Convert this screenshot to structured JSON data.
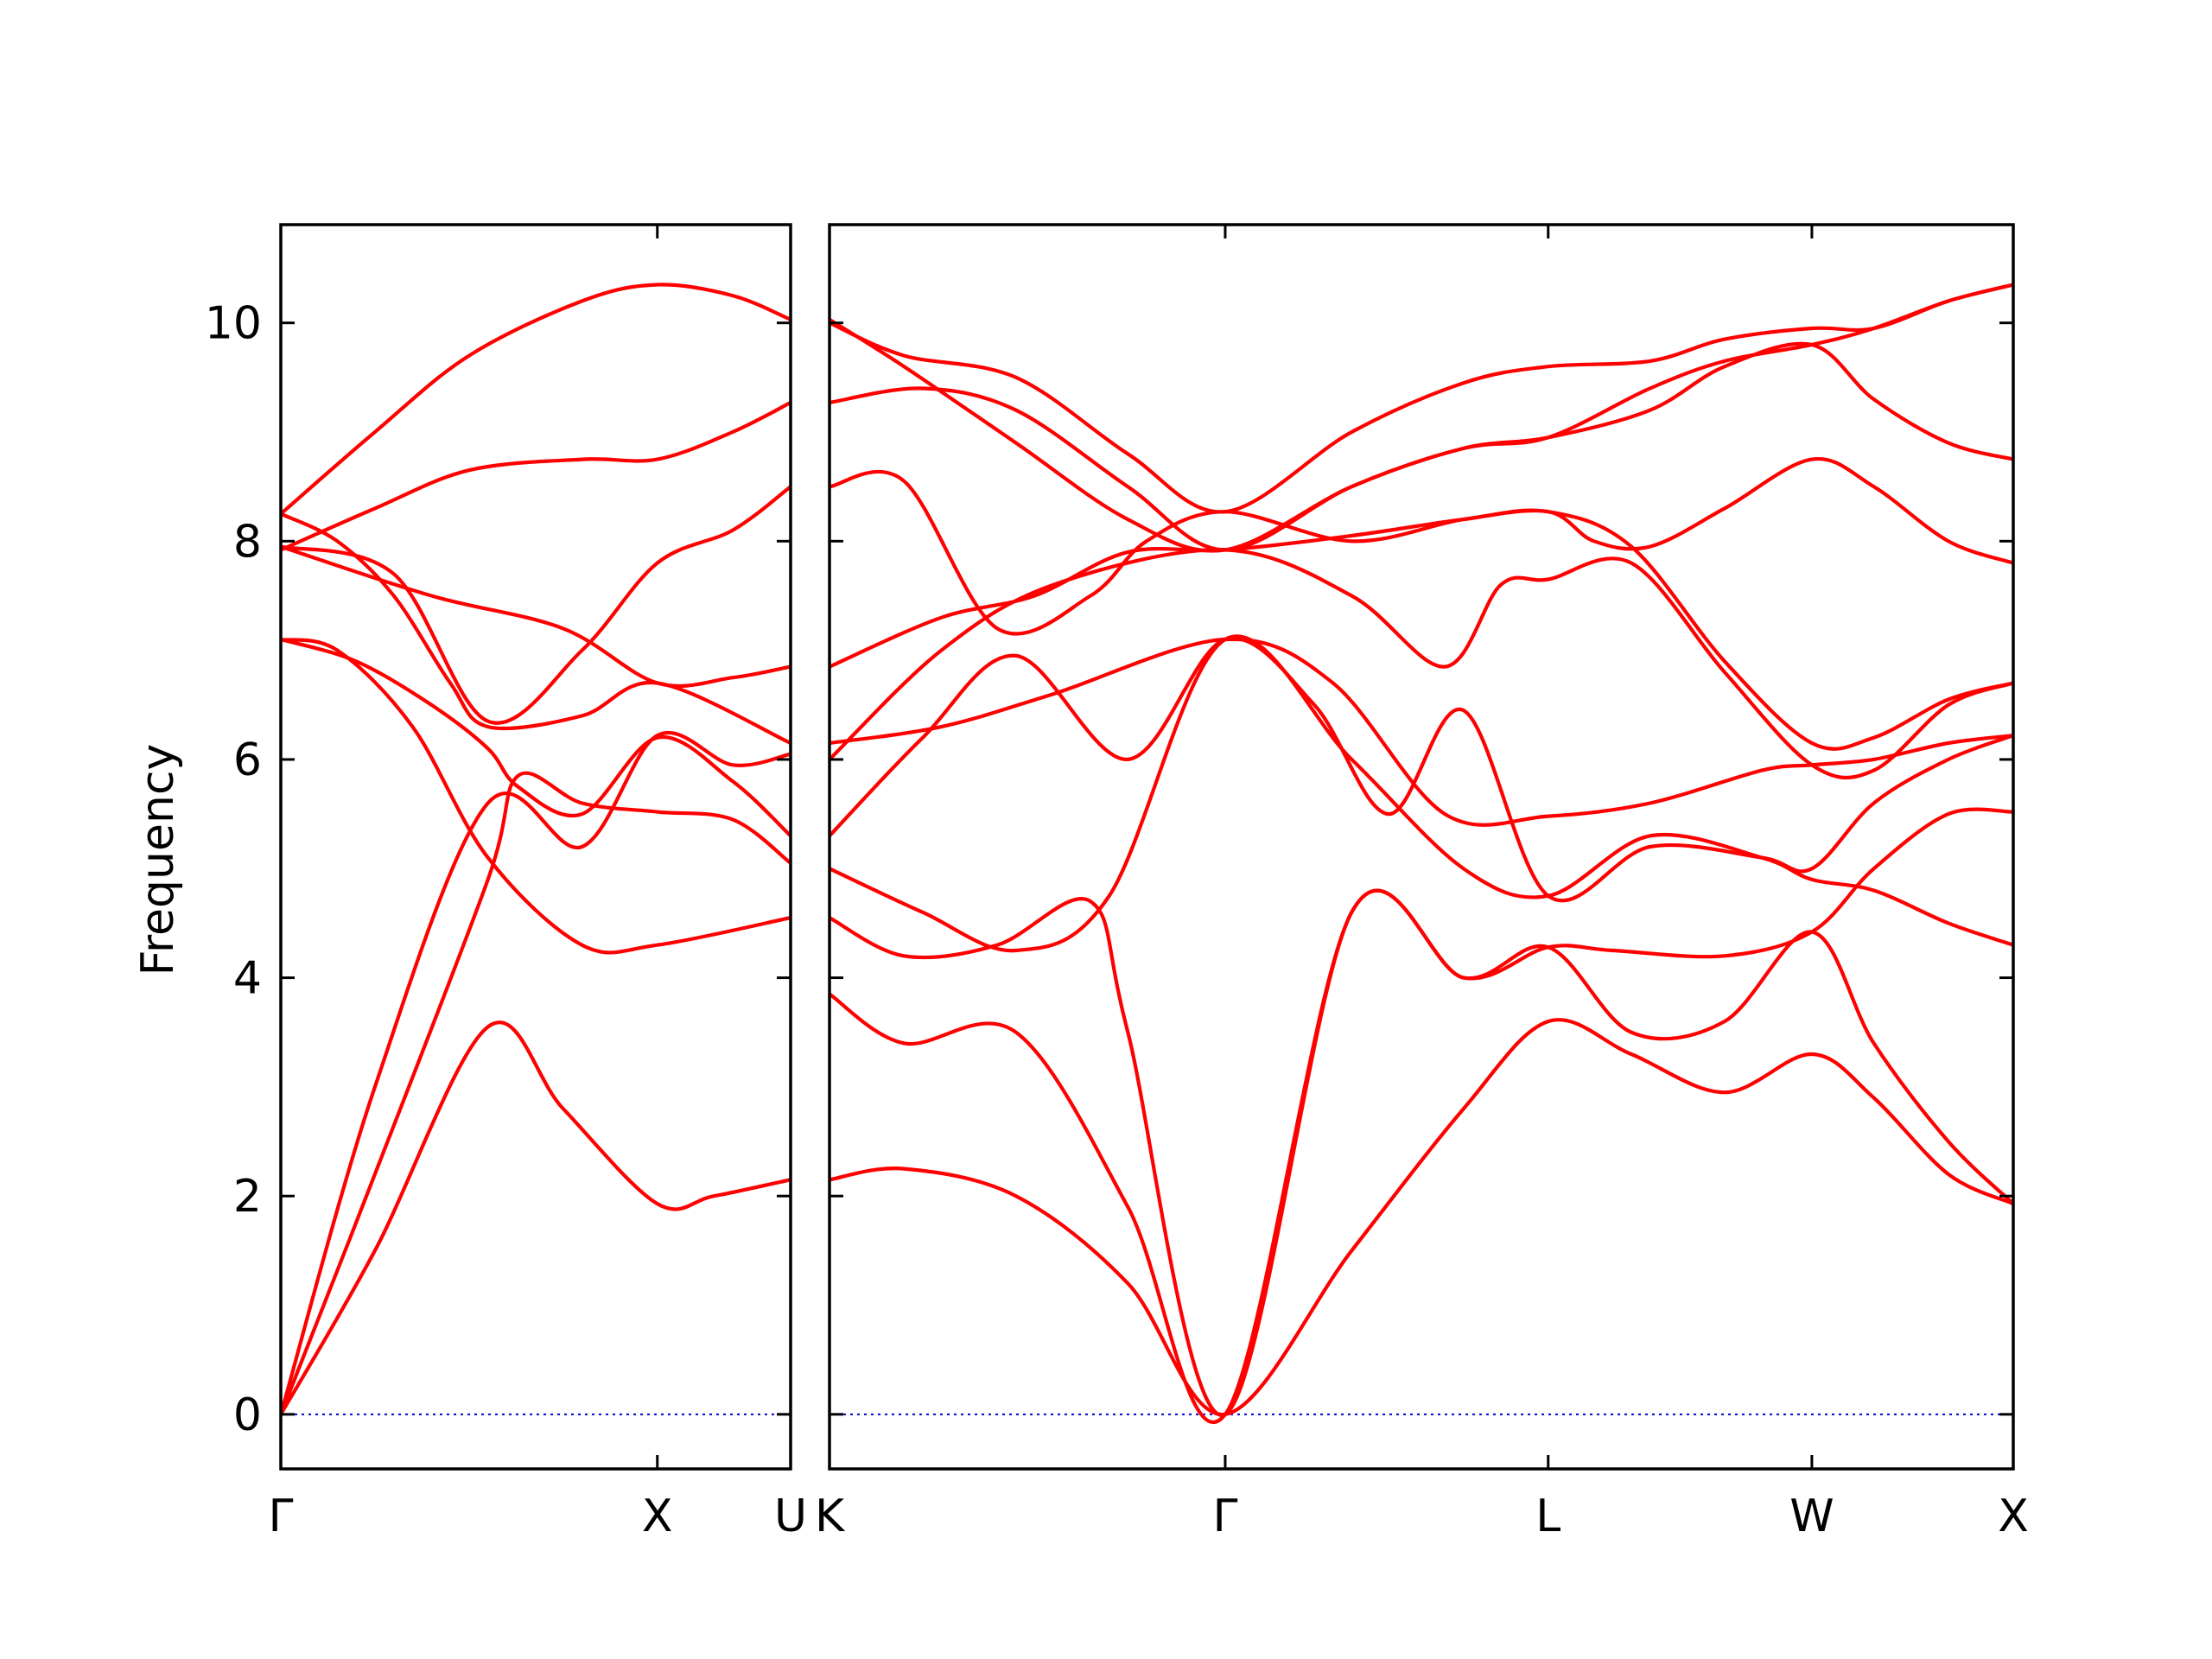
{
  "colors": {
    "band": "#ff0000",
    "zero_line": "#0000cc",
    "axis": "#000000"
  },
  "chart_data": {
    "type": "line",
    "title": "",
    "ylabel": "Frequency",
    "xlabel": "",
    "ylim": [
      -0.5,
      10.9
    ],
    "yticks": [
      0,
      2,
      4,
      6,
      8,
      10
    ],
    "grid": false,
    "legend": "none",
    "reference_line": {
      "y": 0,
      "style": "dotted"
    },
    "panels": [
      {
        "id": "left",
        "xlim": [
          0,
          1.354
        ],
        "ticks": [
          {
            "x": 0,
            "label": "Γ"
          },
          {
            "x": 1.0,
            "label": "X"
          },
          {
            "x": 1.354,
            "label": "U"
          }
        ],
        "series": [
          {
            "x": [
              0,
              0.25,
              0.55,
              0.75,
              1.0,
              1.15,
              1.354
            ],
            "y": [
              0,
              1.5,
              3.55,
              2.8,
              1.93,
              2.0,
              2.15
            ]
          },
          {
            "x": [
              0,
              0.25,
              0.55,
              0.63,
              0.8,
              1.0,
              1.2,
              1.354
            ],
            "y": [
              0,
              2.2,
              4.9,
              5.85,
              5.6,
              5.52,
              5.45,
              5.05
            ]
          },
          {
            "x": [
              0,
              0.25,
              0.55,
              0.8,
              1.0,
              1.2,
              1.354
            ],
            "y": [
              0,
              3.0,
              5.6,
              5.2,
              6.22,
              5.95,
              6.05
            ]
          },
          {
            "x": [
              0,
              0.15,
              0.35,
              0.55,
              0.8,
              1.0,
              1.354
            ],
            "y": [
              7.1,
              7.0,
              6.3,
              5.1,
              4.3,
              4.3,
              4.55
            ]
          },
          {
            "x": [
              0,
              0.2,
              0.4,
              0.55,
              0.63,
              0.8,
              1.0,
              1.2,
              1.354
            ],
            "y": [
              7.1,
              6.9,
              6.5,
              6.1,
              5.75,
              5.5,
              6.2,
              5.8,
              5.3
            ]
          },
          {
            "x": [
              0,
              0.3,
              0.55,
              0.8,
              1.0,
              1.2,
              1.354
            ],
            "y": [
              7.95,
              7.7,
              6.35,
              7.0,
              7.8,
              8.1,
              8.5
            ]
          },
          {
            "x": [
              0,
              0.4,
              0.75,
              1.0,
              1.2,
              1.354
            ],
            "y": [
              7.95,
              7.5,
              7.2,
              6.7,
              6.75,
              6.85
            ]
          },
          {
            "x": [
              0,
              0.15,
              0.3,
              0.45,
              0.55,
              0.8,
              1.0,
              1.354
            ],
            "y": [
              8.25,
              8.0,
              7.5,
              6.7,
              6.3,
              6.4,
              6.7,
              6.15
            ]
          },
          {
            "x": [
              0,
              0.25,
              0.5,
              0.8,
              1.0,
              1.2,
              1.354
            ],
            "y": [
              7.92,
              8.3,
              8.65,
              8.75,
              8.75,
              9.0,
              9.27
            ]
          },
          {
            "x": [
              0,
              0.25,
              0.5,
              0.8,
              1.0,
              1.2,
              1.354
            ],
            "y": [
              8.25,
              9.0,
              9.7,
              10.2,
              10.35,
              10.25,
              10.03
            ]
          }
        ]
      },
      {
        "id": "right",
        "xlim": [
          0,
          3.174
        ],
        "ticks": [
          {
            "x": 0,
            "label": "K"
          },
          {
            "x": 1.061,
            "label": "Γ"
          },
          {
            "x": 1.927,
            "label": "L"
          },
          {
            "x": 2.634,
            "label": "W"
          },
          {
            "x": 3.174,
            "label": "X"
          }
        ],
        "series": [
          {
            "x": [
              0,
              0.2,
              0.5,
              0.8,
              1.061,
              1.4,
              1.7,
              1.927,
              2.15,
              2.4,
              2.634,
              2.8,
              3.0,
              3.174
            ],
            "y": [
              2.15,
              2.25,
              2.0,
              1.2,
              0,
              1.5,
              2.8,
              3.6,
              3.3,
              2.95,
              3.3,
              2.9,
              2.2,
              1.93
            ]
          },
          {
            "x": [
              0,
              0.2,
              0.5,
              0.8,
              1.061,
              1.4,
              1.7,
              1.927,
              2.15,
              2.4,
              2.634,
              2.8,
              3.0,
              3.174
            ],
            "y": [
              3.85,
              3.4,
              3.5,
              1.9,
              0,
              4.6,
              4.0,
              4.28,
              3.5,
              3.6,
              4.42,
              3.4,
              2.5,
              1.93
            ]
          },
          {
            "x": [
              0,
              0.2,
              0.45,
              0.7,
              0.8,
              1.061,
              1.4,
              1.7,
              1.927,
              2.1,
              2.4,
              2.634,
              2.8,
              3.0,
              3.174
            ],
            "y": [
              4.55,
              4.2,
              4.3,
              4.7,
              3.5,
              0,
              4.6,
              4.0,
              4.28,
              4.25,
              4.2,
              4.42,
              5.0,
              5.5,
              5.52
            ]
          },
          {
            "x": [
              0,
              0.25,
              0.5,
              0.75,
              1.061,
              1.4,
              1.7,
              1.927,
              2.2,
              2.5,
              2.634,
              2.8,
              3.0,
              3.174
            ],
            "y": [
              5.0,
              4.6,
              4.25,
              4.75,
              7.1,
              6.0,
              5.0,
              4.75,
              5.3,
              5.1,
              4.9,
              4.8,
              4.5,
              4.3
            ]
          },
          {
            "x": [
              0,
              0.25,
              0.5,
              0.8,
              1.061,
              1.3,
              1.5,
              1.7,
              1.927,
              2.2,
              2.5,
              2.634,
              2.8,
              3.0,
              3.174
            ],
            "y": [
              5.3,
              6.2,
              6.95,
              6.0,
              7.1,
              6.5,
              5.5,
              6.45,
              4.75,
              5.2,
              5.1,
              5.0,
              5.6,
              6.0,
              6.22
            ]
          },
          {
            "x": [
              0,
              0.3,
              0.6,
              1.061,
              1.35,
              1.65,
              1.927,
              2.2,
              2.5,
              2.634,
              2.8,
              3.0,
              3.174
            ],
            "y": [
              6.15,
              6.3,
              6.6,
              7.1,
              6.7,
              5.5,
              5.48,
              5.6,
              5.9,
              5.95,
              6.0,
              6.15,
              6.22
            ]
          },
          {
            "x": [
              0,
              0.3,
              0.6,
              1.061,
              1.4,
              1.65,
              1.8,
              1.927,
              2.15,
              2.4,
              2.634,
              2.8,
              3.0,
              3.174
            ],
            "y": [
              6.0,
              7.0,
              7.6,
              7.92,
              7.5,
              6.85,
              7.6,
              7.65,
              7.8,
              6.8,
              5.95,
              5.9,
              6.5,
              6.7
            ]
          },
          {
            "x": [
              0,
              0.3,
              0.55,
              0.8,
              1.061,
              1.4,
              1.7,
              1.927,
              2.15,
              2.4,
              2.634,
              2.8,
              3.0,
              3.174
            ],
            "y": [
              6.85,
              7.3,
              7.5,
              7.9,
              7.92,
              8.05,
              8.2,
              8.27,
              7.95,
              6.9,
              6.15,
              6.2,
              6.55,
              6.7
            ]
          },
          {
            "x": [
              0,
              0.2,
              0.45,
              0.7,
              0.85,
              1.061,
              1.4,
              1.7,
              1.927,
              2.05,
              2.2,
              2.4,
              2.634,
              2.8,
              3.0,
              3.174
            ],
            "y": [
              8.5,
              8.55,
              7.2,
              7.5,
              8.0,
              8.27,
              8.0,
              8.2,
              8.27,
              8.0,
              7.95,
              8.3,
              8.75,
              8.5,
              8.0,
              7.8
            ]
          },
          {
            "x": [
              0,
              0.25,
              0.5,
              0.8,
              1.061,
              1.4,
              1.7,
              1.927,
              2.2,
              2.4,
              2.634,
              2.8,
              3.0,
              3.174
            ],
            "y": [
              9.27,
              9.4,
              9.2,
              8.5,
              7.92,
              8.5,
              8.85,
              8.95,
              9.2,
              9.6,
              9.8,
              9.3,
              8.9,
              8.75
            ]
          },
          {
            "x": [
              0,
              0.2,
              0.5,
              0.8,
              1.061,
              1.4,
              1.7,
              1.927,
              2.2,
              2.4,
              2.634,
              2.8,
              3.0,
              3.174
            ],
            "y": [
              10.03,
              9.6,
              8.9,
              8.2,
              7.92,
              8.5,
              8.85,
              8.95,
              9.4,
              9.65,
              9.8,
              9.95,
              10.2,
              10.35
            ]
          },
          {
            "x": [
              0,
              0.2,
              0.5,
              0.8,
              1.061,
              1.4,
              1.7,
              1.927,
              2.2,
              2.4,
              2.634,
              2.8,
              3.0,
              3.174
            ],
            "y": [
              10.0,
              9.7,
              9.5,
              8.8,
              8.27,
              9.0,
              9.45,
              9.6,
              9.65,
              9.85,
              9.95,
              9.95,
              10.2,
              10.35
            ]
          }
        ]
      }
    ]
  }
}
